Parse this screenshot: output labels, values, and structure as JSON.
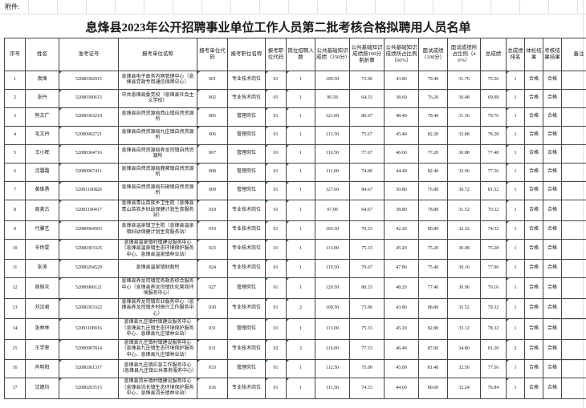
{
  "attachment_label": "附件:",
  "title": "息烽县2023年公开招聘事业单位工作人员第二批考核合格拟聘用人员名单",
  "table": {
    "columns": [
      "序号",
      "姓名",
      "准考证号",
      "报考单位名称",
      "报考单位代码",
      "报考职位名称",
      "报考职位代码",
      "岗位招聘人数",
      "公共基础知识成绩（150分）",
      "公共基础知识成绩按100分制折算",
      "公共基础知识成绩所占比例（60%）",
      "面试成绩（100分）",
      "面试成绩所占比例（40%）",
      "总成绩",
      "总成绩排名",
      "体检结果",
      "考核结果结果",
      "备注"
    ],
    "rows": [
      {
        "seq": "1",
        "name": "袁烽",
        "id": "52080302915",
        "unit": "息烽县电子政务内网管理中心（息烽县党政专用通信保障中心）",
        "unit_code": "001",
        "position": "专业技术岗位",
        "pos_code": "01",
        "recruit": "1",
        "base_150": "109.50",
        "base_100": "73.00",
        "base_60pct": "43.80",
        "interview": "79.40",
        "interview_40pct": "31.76",
        "total": "75.56",
        "rank": "1",
        "physical": "合格",
        "assess": "合格",
        "remark": ""
      },
      {
        "seq": "2",
        "name": "张丹",
        "id": "52080300615",
        "unit": "中共息烽县委党校（息烽县社会主义学校）",
        "unit_code": "002",
        "position": "专业技术岗位",
        "pos_code": "01",
        "recruit": "1",
        "base_150": "96.50",
        "base_100": "64.33",
        "base_60pct": "38.60",
        "interview": "76.20",
        "interview_40pct": "30.48",
        "total": "69.08",
        "rank": "1",
        "physical": "合格",
        "assess": "合格",
        "remark": ""
      },
      {
        "seq": "3",
        "name": "熊文广",
        "id": "52080303219",
        "unit": "息烽县自然资源局西山镇自然资源所",
        "unit_code": "005",
        "position": "管理岗位",
        "pos_code": "01",
        "recruit": "1",
        "base_150": "121.00",
        "base_100": "80.67",
        "base_60pct": "48.40",
        "interview": "78.40",
        "interview_40pct": "31.36",
        "total": "79.76",
        "rank": "1",
        "physical": "合格",
        "assess": "合格",
        "remark": ""
      },
      {
        "seq": "4",
        "name": "毛文丹",
        "id": "52080902721",
        "unit": "息烽县自然资源局九庄镇自然资源所",
        "unit_code": "006",
        "position": "管理岗位",
        "pos_code": "01",
        "recruit": "1",
        "base_150": "113.50",
        "base_100": "75.67",
        "base_60pct": "45.40",
        "interview": "82.20",
        "interview_40pct": "32.88",
        "total": "78.28",
        "rank": "1",
        "physical": "合格",
        "assess": "合格",
        "remark": ""
      },
      {
        "seq": "5",
        "name": "王小晖",
        "id": "52080304716",
        "unit": "息烽县自然资源局养龙司镇自然资源所",
        "unit_code": "007",
        "position": "管理岗位",
        "pos_code": "01",
        "recruit": "1",
        "base_150": "116.50",
        "base_100": "77.67",
        "base_60pct": "46.60",
        "interview": "77.20",
        "interview_40pct": "30.88",
        "total": "77.48",
        "rank": "1",
        "physical": "合格",
        "assess": "合格",
        "remark": ""
      },
      {
        "seq": "6",
        "name": "沈霜霜",
        "id": "52080907411",
        "unit": "息烽县自然资源局鹿窝镇自然资源所",
        "unit_code": "008",
        "position": "管理岗位",
        "pos_code": "01",
        "recruit": "1",
        "base_150": "111.00",
        "base_100": "74.00",
        "base_60pct": "44.40",
        "interview": "82.40",
        "interview_40pct": "32.96",
        "total": "77.36",
        "rank": "1",
        "physical": "合格",
        "assess": "合格",
        "remark": ""
      },
      {
        "seq": "7",
        "name": "黄维勇",
        "id": "52081100826",
        "unit": "息烽县自然资源局石硐镇自然资源所",
        "unit_code": "009",
        "position": "管理岗位",
        "pos_code": "01",
        "recruit": "1",
        "base_150": "127.00",
        "base_100": "84.67",
        "base_60pct": "50.80",
        "interview": "76.80",
        "interview_40pct": "30.72",
        "total": "81.52",
        "rank": "1",
        "physical": "合格",
        "assess": "合格",
        "remark": ""
      },
      {
        "seq": "8",
        "name": "周美古",
        "id": "52081100417",
        "unit": "息烽县青山苗族乡卫生院（息烽县青山苗族乡妇幼保健计划生育服务站）",
        "unit_code": "018",
        "position": "专业技术岗位",
        "pos_code": "01",
        "recruit": "1",
        "base_150": "97.00",
        "base_100": "64.67",
        "base_60pct": "38.80",
        "interview": "78.80",
        "interview_40pct": "31.52",
        "total": "70.32",
        "rank": "1",
        "physical": "合格",
        "assess": "合格",
        "remark": ""
      },
      {
        "seq": "9",
        "name": "代馨艺",
        "id": "52080904503",
        "unit": "息烽县温泉镇卫生院（息烽县温泉镇妇幼保健计划生育服务站）",
        "unit_code": "019",
        "position": "专业技术岗位",
        "pos_code": "01",
        "recruit": "1",
        "base_150": "105.50",
        "base_100": "70.33",
        "base_60pct": "42.20",
        "interview": "80.80",
        "interview_40pct": "32.32",
        "total": "74.52",
        "rank": "1",
        "physical": "合格",
        "assess": "合格",
        "remark": ""
      },
      {
        "seq": "10",
        "name": "辛烨雯",
        "id": "52080303325",
        "unit": "息烽县温泉镇村镇建设服务中心（息烽县温泉镇生态环境保护服务中心、息烽县温泉镇林业站）",
        "unit_code": "023",
        "position": "专业技术岗位",
        "pos_code": "01",
        "recruit": "1",
        "base_150": "113.00",
        "base_100": "75.33",
        "base_60pct": "45.20",
        "interview": "75.20",
        "interview_40pct": "30.08",
        "total": "75.28",
        "rank": "1",
        "physical": "合格",
        "assess": "合格",
        "remark": ""
      },
      {
        "seq": "11",
        "name": "张涛",
        "id": "52080204529",
        "unit": "息烽县温泉镇财政所",
        "unit_code": "024",
        "position": "专业技术岗位",
        "pos_code": "01",
        "recruit": "1",
        "base_150": "119.50",
        "base_100": "79.67",
        "base_60pct": "47.80",
        "interview": "75.40",
        "interview_40pct": "30.16",
        "total": "77.96",
        "rank": "1",
        "physical": "合格",
        "assess": "合格",
        "remark": ""
      },
      {
        "seq": "12",
        "name": "周韬炎",
        "id": "52080908121",
        "unit": "息烽县养龙司镇党务政务综合服务中心（息烽县养龙司镇优化营商环境服务中心）",
        "unit_code": "027",
        "position": "管理岗位",
        "pos_code": "01",
        "recruit": "1",
        "base_150": "120.50",
        "base_100": "80.33",
        "base_60pct": "48.20",
        "interview": "77.40",
        "interview_40pct": "30.96",
        "total": "79.16",
        "rank": "1",
        "physical": "合格",
        "assess": "合格",
        "remark": ""
      },
      {
        "seq": "13",
        "name": "刘沿君",
        "id": "52080303322",
        "unit": "息烽县养龙司镇农业服务中心（息烽县养龙司镇乡村振兴工作服务中心）",
        "unit_code": "030",
        "position": "专业技术岗位",
        "pos_code": "01",
        "recruit": "2",
        "base_150": "109.50",
        "base_100": "73.00",
        "base_60pct": "43.80",
        "interview": "88.80",
        "interview_40pct": "35.52",
        "total": "79.32",
        "rank": "1",
        "physical": "合格",
        "assess": "合格",
        "remark": ""
      },
      {
        "seq": "14",
        "name": "张林林",
        "id": "52081108916",
        "unit": "息烽县九庄镇村镇建设服务中心（息烽县九庄镇生态环境保护服务中心、息烽县九庄镇林业站）",
        "unit_code": "031",
        "position": "管理岗位",
        "pos_code": "01",
        "recruit": "1",
        "base_150": "113.00",
        "base_100": "75.33",
        "base_60pct": "45.20",
        "interview": "82.80",
        "interview_40pct": "33.12",
        "total": "78.32",
        "rank": "1",
        "physical": "合格",
        "assess": "合格",
        "remark": ""
      },
      {
        "seq": "15",
        "name": "王学荣",
        "id": "52080907814",
        "unit": "息烽县九庄镇村镇建设服务中心（息烽县九庄镇生态环境保护服务中心、息烽县九庄镇林业站）",
        "unit_code": "031",
        "position": "专业技术岗位",
        "pos_code": "02",
        "recruit": "2",
        "base_150": "116.00",
        "base_100": "77.33",
        "base_60pct": "46.40",
        "interview": "87.00",
        "interview_40pct": "34.80",
        "total": "81.20",
        "rank": "2",
        "physical": "合格",
        "assess": "合格",
        "remark": ""
      },
      {
        "seq": "16",
        "name": "肖明阳",
        "id": "52080301317",
        "unit": "息烽县九庄镇应急工作服务中心（息烽县九庄镇公共事务服务中心）",
        "unit_code": "033",
        "position": "管理岗位",
        "pos_code": "01",
        "recruit": "1",
        "base_150": "112.50",
        "base_100": "75.00",
        "base_60pct": "45.00",
        "interview": "81.40",
        "interview_40pct": "32.56",
        "total": "77.56",
        "rank": "1",
        "physical": "合格",
        "assess": "合格",
        "remark": ""
      },
      {
        "seq": "17",
        "name": "沈娩均",
        "id": "52080203515",
        "unit": "息烽县流长镇村镇建设服务中心（息烽县流长镇生态环境保护服务中心、息烽县流长镇林业站）",
        "unit_code": "036",
        "position": "专业技术岗位",
        "pos_code": "01",
        "recruit": "1",
        "base_150": "111.50",
        "base_100": "74.33",
        "base_60pct": "44.60",
        "interview": "80.60",
        "interview_40pct": "32.24",
        "total": "76.84",
        "rank": "1",
        "physical": "合格",
        "assess": "合格",
        "remark": ""
      }
    ]
  },
  "colors": {
    "table_border": "#454545",
    "faint_grid": "#dde0e4",
    "green_text_marker": "#1a7f1a",
    "text": "#151515"
  }
}
